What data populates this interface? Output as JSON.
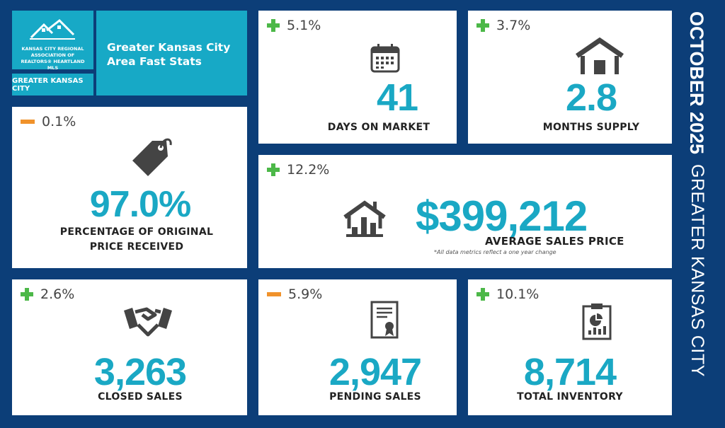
{
  "header": {
    "logo_text": "KANSAS CITY REGIONAL ASSOCIATION OF REALTORS® HEARTLAND MLS",
    "area": "GREATER KANSAS CITY",
    "title_line1": "Greater Kansas City",
    "title_line2": "Area Fast Stats"
  },
  "side": {
    "month": "OCTOBER 2025",
    "region": "GREATER KANSAS CITY"
  },
  "colors": {
    "background": "#0c3e78",
    "accent": "#17a9c6",
    "increase": "#4cb848",
    "decrease": "#f0922b"
  },
  "stats": {
    "days": {
      "change": "5.1%",
      "direction": "up",
      "value": "41",
      "label": "DAYS ON MARKET",
      "icon": "calendar-icon"
    },
    "months": {
      "change": "3.7%",
      "direction": "up",
      "value": "2.8",
      "label": "MONTHS SUPPLY",
      "icon": "house-icon"
    },
    "pct": {
      "change": "0.1%",
      "direction": "down",
      "value": "97.0%",
      "label1": "PERCENTAGE OF ORIGINAL",
      "label2": "PRICE RECEIVED",
      "icon": "price-tag-icon"
    },
    "avg": {
      "change": "12.2%",
      "direction": "up",
      "value": "$399,212",
      "label": "AVERAGE SALES PRICE",
      "note": "*All data metrics reflect a one year change",
      "icon": "house-chart-icon"
    },
    "closed": {
      "change": "2.6%",
      "direction": "up",
      "value": "3,263",
      "label": "CLOSED SALES",
      "icon": "handshake-icon"
    },
    "pending": {
      "change": "5.9%",
      "direction": "down",
      "value": "2,947",
      "label": "PENDING SALES",
      "icon": "certificate-icon"
    },
    "inventory": {
      "change": "10.1%",
      "direction": "up",
      "value": "8,714",
      "label": "TOTAL INVENTORY",
      "icon": "clipboard-chart-icon"
    }
  }
}
